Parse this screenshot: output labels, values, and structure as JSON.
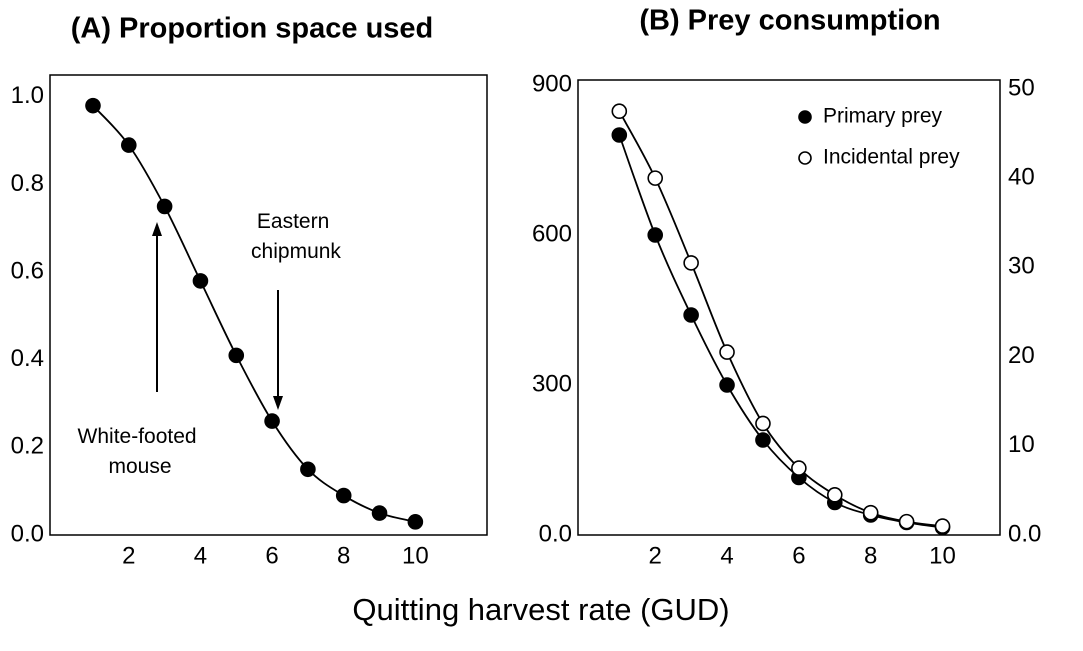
{
  "chart_data": [
    {
      "type": "line",
      "title": "(A) Proportion space used",
      "x": [
        1,
        2,
        3,
        4,
        5,
        6,
        7,
        8,
        9,
        10
      ],
      "series": [
        {
          "name": null,
          "color": "#000000",
          "markerfill": "#000000",
          "values": [
            0.98,
            0.89,
            0.75,
            0.58,
            0.41,
            0.26,
            0.15,
            0.09,
            0.05,
            0.03
          ]
        }
      ],
      "xlim": [
        -0.2,
        12
      ],
      "xticks": [
        2,
        4,
        6,
        8,
        10
      ],
      "ylim": [
        0,
        1.05
      ],
      "yticks": [
        {
          "value": 0,
          "label": "0.0"
        },
        0.2,
        0.4,
        0.6,
        0.8,
        {
          "value": 1,
          "label": "1.0"
        }
      ],
      "annotations": [
        {
          "text": [
            "Eastern",
            "chipmunk"
          ]
        },
        {
          "text": [
            "White-footed",
            "mouse"
          ]
        }
      ]
    },
    {
      "type": "line",
      "title": "(B) Prey consumption",
      "x": [
        1,
        2,
        3,
        4,
        5,
        6,
        7,
        8,
        9,
        10
      ],
      "series": [
        {
          "name": "Primary prey",
          "color": "#000000",
          "markerfill": "#000000",
          "values": [
            800,
            600,
            440,
            300,
            190,
            115,
            65,
            40,
            25,
            15
          ]
        },
        {
          "name": "Incidental prey",
          "color": "#000000",
          "markerfill": "#ffffff",
          "axis": "y2",
          "values": [
            47.5,
            40,
            30.5,
            20.5,
            12.5,
            7.5,
            4.5,
            2.5,
            1.5,
            1
          ]
        }
      ],
      "xlim": [
        -0.15,
        11.6
      ],
      "xticks": [
        2,
        4,
        6,
        8,
        10
      ],
      "ylim": [
        0,
        910
      ],
      "yticks": [
        {
          "value": 0,
          "label": "0.0"
        },
        300,
        600,
        900
      ],
      "y2lim": [
        0,
        51
      ],
      "y2ticks": [
        {
          "value": 0,
          "label": "0.0"
        },
        10,
        20,
        30,
        40,
        50
      ],
      "legend": "upper right"
    }
  ],
  "xlabel": "Quitting harvest rate (GUD)"
}
